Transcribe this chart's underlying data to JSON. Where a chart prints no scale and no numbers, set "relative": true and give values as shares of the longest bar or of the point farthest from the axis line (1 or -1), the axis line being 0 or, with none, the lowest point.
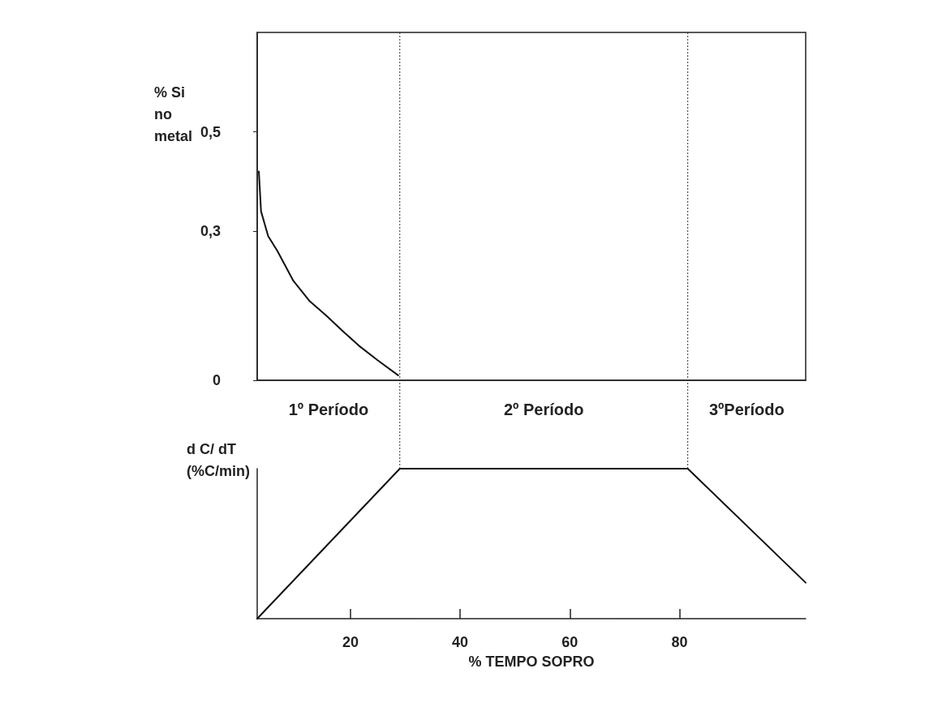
{
  "chart_data": [
    {
      "type": "line",
      "ylabel": "% Si\nno\nmetal",
      "x": [
        3.3,
        3.7,
        5,
        6.7,
        9.6,
        12.5,
        15.6,
        18.5,
        21.5,
        25,
        28.7
      ],
      "values": [
        0.42,
        0.34,
        0.29,
        0.26,
        0.2,
        0.16,
        0.13,
        0.1,
        0.07,
        0.04,
        0.01
      ],
      "color": "#111111",
      "xlim": [
        3,
        103
      ],
      "ylim": [
        0,
        0.7
      ],
      "yticks": [
        0,
        {
          "value": 0.3,
          "label": "0,3"
        },
        {
          "value": 0.5,
          "label": "0,5"
        }
      ],
      "tick_labels": "y",
      "marker": "none",
      "line_style": "solid",
      "ref_lines": [
        {
          "axis": "x",
          "value": 29,
          "line_style": "dotted"
        },
        {
          "axis": "x",
          "value": 81.5,
          "line_style": "dotted"
        }
      ],
      "annotations": [
        "1º Período",
        "2º Período",
        "3ºPeríodo"
      ]
    },
    {
      "type": "line",
      "relative": true,
      "ylabel": "d C/ dT\n(%C/min)",
      "xlabel": "% TEMPO SOPRO",
      "x": [
        3,
        29,
        81.5,
        103
      ],
      "values": [
        0,
        1,
        1,
        0.24
      ],
      "color": "#111111",
      "xlim": [
        3,
        103
      ],
      "xticks": [
        20,
        40,
        60,
        80
      ],
      "tick_labels": "x",
      "marker": "none",
      "line_style": "solid"
    }
  ]
}
